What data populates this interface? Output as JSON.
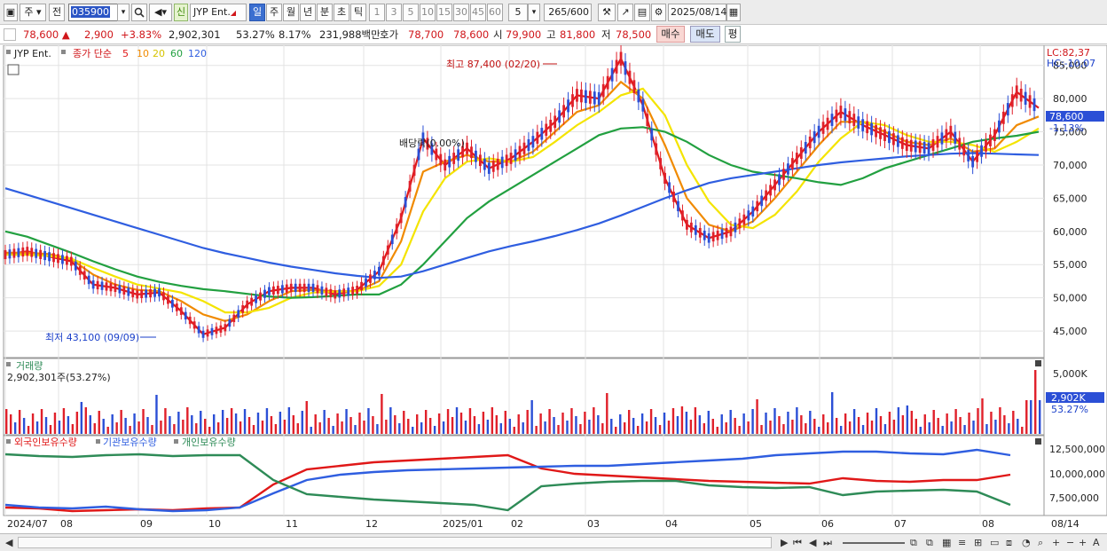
{
  "toolbar": {
    "period_main": "주",
    "prev_label": "전",
    "stock_code": "035900",
    "new_badge": "신",
    "stock_name": "JYP Ent.",
    "tabs": [
      "일",
      "주",
      "월",
      "년",
      "분",
      "초",
      "틱"
    ],
    "active_tab": "일",
    "intervals": [
      "1",
      "3",
      "5",
      "10",
      "15",
      "30",
      "45",
      "60"
    ],
    "interval_select": "5",
    "count_value": "265",
    "count_total": "/600",
    "date_value": "2025/08/14"
  },
  "quote": {
    "price": "78,600",
    "change": "2,900",
    "change_pct": "+3.83%",
    "volume": "2,902,301",
    "volume_ratio": "53.27%",
    "turnover": "8.17%",
    "amount": "231,988백만",
    "bid_label": "호가",
    "ask": "78,700",
    "bid": "78,600",
    "open_label": "시",
    "open": "79,900",
    "high_label": "고",
    "high": "81,800",
    "low_label": "저",
    "low": "78,500",
    "buy_label": "매수",
    "sell_label": "매도",
    "eval_label": "평"
  },
  "chart": {
    "stock_tag": "JYP Ent.",
    "legend_main": "종가 단순",
    "ma_periods": [
      "5",
      "10",
      "20",
      "60",
      "120"
    ],
    "ma_colors": [
      "#e01818",
      "#f08a00",
      "#f4e400",
      "#22a040",
      "#2f5ee0"
    ],
    "lc_label": "LC:82,37",
    "hc_label": "HC:-10,07",
    "current_price": "78,600",
    "current_pct": "-1.13%",
    "high_marker": "최고 87,400 (02/20)",
    "low_marker": "최저 43,100 (09/09)",
    "dividend_marker": "배당락(0.00%)",
    "price_ticks": [
      "85,000",
      "80,000",
      "75,000",
      "70,000",
      "65,000",
      "60,000",
      "55,000",
      "50,000",
      "45,000"
    ],
    "volume_title": "거래량",
    "volume_value": "2,902,301주(53.27%)",
    "volume_ticks": [
      "5,000K"
    ],
    "volume_current": "2,902K",
    "volume_current_pct": "53.27%",
    "holdings_legend": [
      "외국인보유수량",
      "기관보유수량",
      "개인보유수량"
    ],
    "holdings_colors": [
      "#e01818",
      "#2f5ee0",
      "#2e8b57"
    ],
    "holdings_ticks": [
      "12,500,000",
      "10,000,000",
      "7,500,000"
    ],
    "date_labels": [
      "2024/07",
      "08",
      "09",
      "10",
      "11",
      "12",
      "2025/01",
      "02",
      "03",
      "04",
      "05",
      "06",
      "07",
      "08"
    ],
    "date_right": "08/14"
  },
  "chart_data": {
    "type": "line",
    "title": "",
    "ylim": [
      41000,
      87500
    ],
    "x_range": [
      "2024/07",
      "2025/08/14"
    ],
    "series": [
      {
        "name": "5",
        "values": [
          56500,
          57000,
          56200,
          55500,
          52000,
          51500,
          50500,
          50800,
          48000,
          44500,
          45500,
          49000,
          51000,
          51500,
          51500,
          50500,
          51200,
          54000,
          62000,
          74000,
          70000,
          72500,
          69500,
          71000,
          73500,
          76500,
          80500,
          80000,
          86000,
          79000,
          68000,
          61000,
          59000,
          60000,
          63000,
          67000,
          71000,
          75000,
          78000,
          76000,
          74500,
          73000,
          72500,
          75000,
          70500,
          74500,
          81000,
          78600
        ]
      },
      {
        "name": "10",
        "values": [
          56800,
          56800,
          56600,
          55800,
          53500,
          52000,
          51200,
          51000,
          49500,
          47500,
          46500,
          47500,
          49500,
          51000,
          51200,
          51000,
          51000,
          52500,
          58500,
          69000,
          70500,
          71500,
          70500,
          70500,
          72000,
          75000,
          78000,
          79000,
          82500,
          80000,
          73000,
          65000,
          61000,
          60000,
          61500,
          65000,
          69000,
          73000,
          76500,
          76500,
          75000,
          73500,
          73000,
          74000,
          72000,
          72500,
          76000,
          77300
        ]
      },
      {
        "name": "20",
        "values": [
          56500,
          56500,
          56300,
          55900,
          54500,
          53200,
          52000,
          51400,
          50800,
          49500,
          47800,
          47800,
          48500,
          50000,
          50800,
          50900,
          51000,
          51800,
          55000,
          63000,
          68000,
          70500,
          71000,
          70500,
          71200,
          73500,
          76000,
          78000,
          80500,
          81500,
          77500,
          70000,
          64500,
          61000,
          60500,
          62500,
          66000,
          70500,
          74000,
          76500,
          76000,
          74500,
          73500,
          73500,
          73000,
          72000,
          73500,
          75500
        ]
      },
      {
        "name": "60",
        "values": [
          60000,
          59200,
          58000,
          56800,
          55500,
          54300,
          53200,
          52400,
          51800,
          51300,
          51000,
          50600,
          50200,
          50000,
          50100,
          50300,
          50500,
          50500,
          52000,
          55000,
          58500,
          62000,
          64500,
          66500,
          68500,
          70500,
          72500,
          74500,
          75500,
          75700,
          75000,
          73500,
          71500,
          70000,
          69000,
          68500,
          68000,
          67400,
          67000,
          68000,
          69500,
          70500,
          71500,
          72500,
          73500,
          74000,
          74400,
          75000
        ]
      },
      {
        "name": "120",
        "values": [
          66500,
          65500,
          64500,
          63500,
          62500,
          61500,
          60500,
          59500,
          58500,
          57500,
          56700,
          56000,
          55300,
          54700,
          54200,
          53700,
          53300,
          53000,
          53200,
          54000,
          55000,
          56000,
          57000,
          57800,
          58500,
          59300,
          60200,
          61200,
          62400,
          63700,
          65000,
          66200,
          67300,
          68000,
          68500,
          69000,
          69500,
          70000,
          70400,
          70700,
          71000,
          71300,
          71500,
          71700,
          71800,
          71700,
          71600,
          71500
        ]
      }
    ]
  },
  "scrollbar": {
    "icons": [
      "play-icon",
      "first-icon",
      "prev-icon",
      "next-icon",
      "last-icon"
    ]
  }
}
